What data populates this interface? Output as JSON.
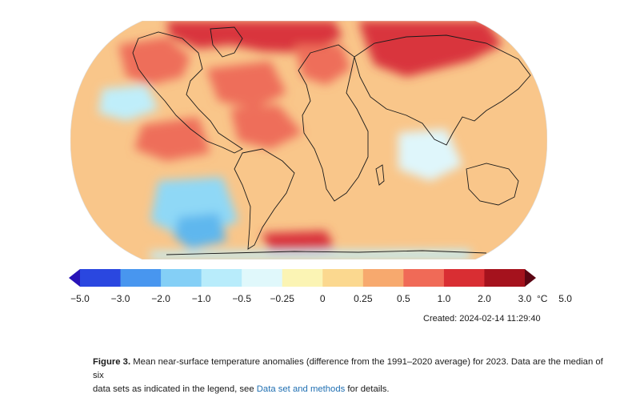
{
  "map": {
    "projection": "robinson",
    "base_color": "#f9c68a",
    "regions": [
      {
        "name": "arctic-siberia",
        "color": "#d9363e"
      },
      {
        "name": "north-america-north",
        "color": "#ee6e5a"
      },
      {
        "name": "north-atlantic",
        "color": "#ee6e5a"
      },
      {
        "name": "europe",
        "color": "#ee6e5a"
      },
      {
        "name": "central-asia",
        "color": "#d9363e"
      },
      {
        "name": "tropical-atlantic",
        "color": "#ee6e5a"
      },
      {
        "name": "east-pacific",
        "color": "#ee6e5a"
      },
      {
        "name": "north-pacific-cool",
        "color": "#bfeefa"
      },
      {
        "name": "indian-ocean-cool",
        "color": "#dff6fb"
      },
      {
        "name": "south-pacific-cool",
        "color": "#8fd8f6"
      },
      {
        "name": "south-pacific-cold",
        "color": "#5fb7ee"
      },
      {
        "name": "southern-ocean-warm",
        "color": "#d9363e"
      },
      {
        "name": "antarctica-cool",
        "color": "#bfeefa"
      }
    ]
  },
  "legend": {
    "colors": [
      "#2813b8",
      "#2a47e0",
      "#4896ef",
      "#84cff6",
      "#b8ecfb",
      "#e0f8fb",
      "#fbf4b4",
      "#fbd88f",
      "#f7a96e",
      "#f06a57",
      "#d92e33",
      "#a5121d",
      "#5b0513"
    ],
    "labels": [
      "−5.0",
      "−3.0",
      "−2.0",
      "−1.0",
      "−0.5",
      "−0.25",
      "0",
      "0.25",
      "0.5",
      "1.0",
      "2.0",
      "3.0",
      "5.0"
    ],
    "unit": "°C"
  },
  "created": "Created: 2024-02-14  11:29:40",
  "caption": {
    "figure": "Figure 3.",
    "text_line1": " Mean near-surface temperature anomalies (difference from the 1991–2020 average) for 2023. Data are the median of six",
    "text_line2": "data sets as indicated in the legend, see ",
    "link": "Data set and methods",
    "text_end": " for details."
  }
}
